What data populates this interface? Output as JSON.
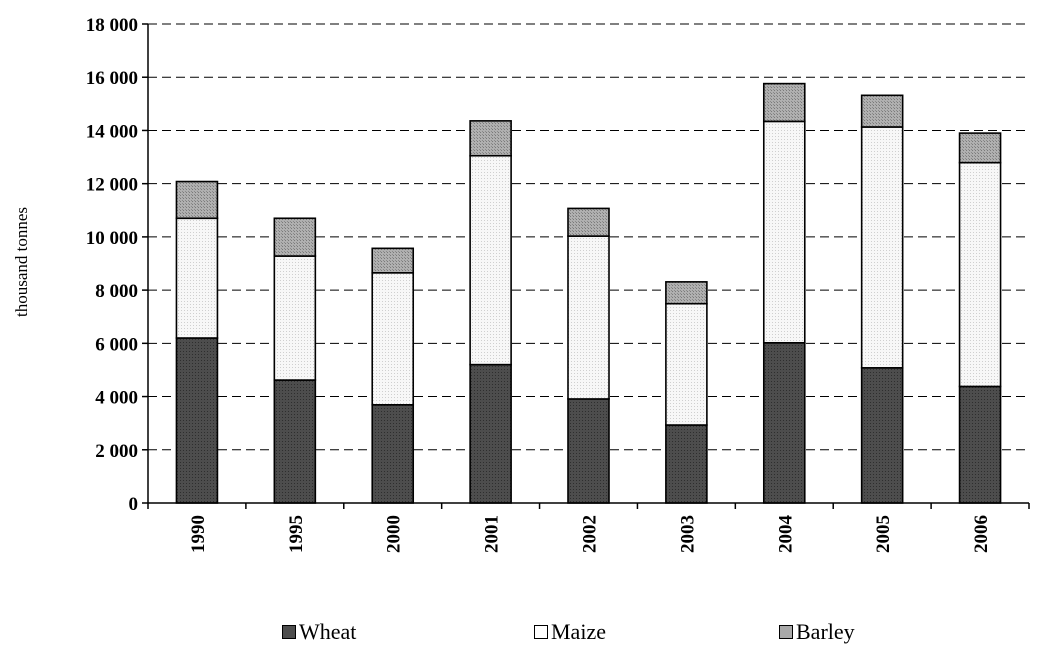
{
  "chart_data": {
    "type": "bar",
    "stacked": true,
    "categories": [
      "1990",
      "1995",
      "2000",
      "2001",
      "2002",
      "2003",
      "2004",
      "2005",
      "2006"
    ],
    "series": [
      {
        "name": "Wheat",
        "color": "#4d4d4d",
        "values": [
          6200,
          4620,
          3690,
          5200,
          3910,
          2930,
          6020,
          5080,
          4380
        ]
      },
      {
        "name": "Maize",
        "color": "#f4f4f4",
        "values": [
          4500,
          4660,
          4960,
          7850,
          6120,
          4560,
          8320,
          9050,
          8410
        ]
      },
      {
        "name": "Barley",
        "color": "#a9a9a9",
        "values": [
          1380,
          1420,
          920,
          1310,
          1040,
          820,
          1420,
          1190,
          1110
        ]
      }
    ],
    "title": "",
    "xlabel": "",
    "ylabel": "thousand tonnes",
    "ylim": [
      0,
      18000
    ],
    "yticks": [
      0,
      2000,
      4000,
      6000,
      8000,
      10000,
      12000,
      14000,
      16000,
      18000
    ],
    "ytick_labels": [
      "0",
      "2 000",
      "4 000",
      "6 000",
      "8 000",
      "10 000",
      "12 000",
      "14 000",
      "16 000",
      "18 000"
    ],
    "grid": "horizontal dashed",
    "legend_position": "bottom"
  }
}
